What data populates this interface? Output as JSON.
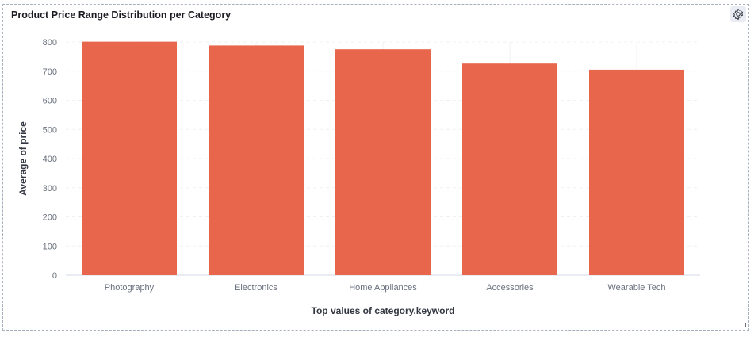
{
  "panel": {
    "title": "Product Price Range Distribution per Category",
    "settings_icon": "gear-icon",
    "resize_icon": "resize-handle-icon"
  },
  "chart_data": {
    "type": "bar",
    "title": "Product Price Range Distribution per Category",
    "xlabel": "Top values of category.keyword",
    "ylabel": "Average of price",
    "categories": [
      "Photography",
      "Electronics",
      "Home Appliances",
      "Accessories",
      "Wearable Tech"
    ],
    "values": [
      801,
      788,
      775,
      726,
      705
    ],
    "ylim": [
      0,
      800
    ],
    "yticks": [
      0,
      100,
      200,
      300,
      400,
      500,
      600,
      700,
      800
    ],
    "bar_color": "#e7664c",
    "grid": true,
    "legend": "none"
  }
}
